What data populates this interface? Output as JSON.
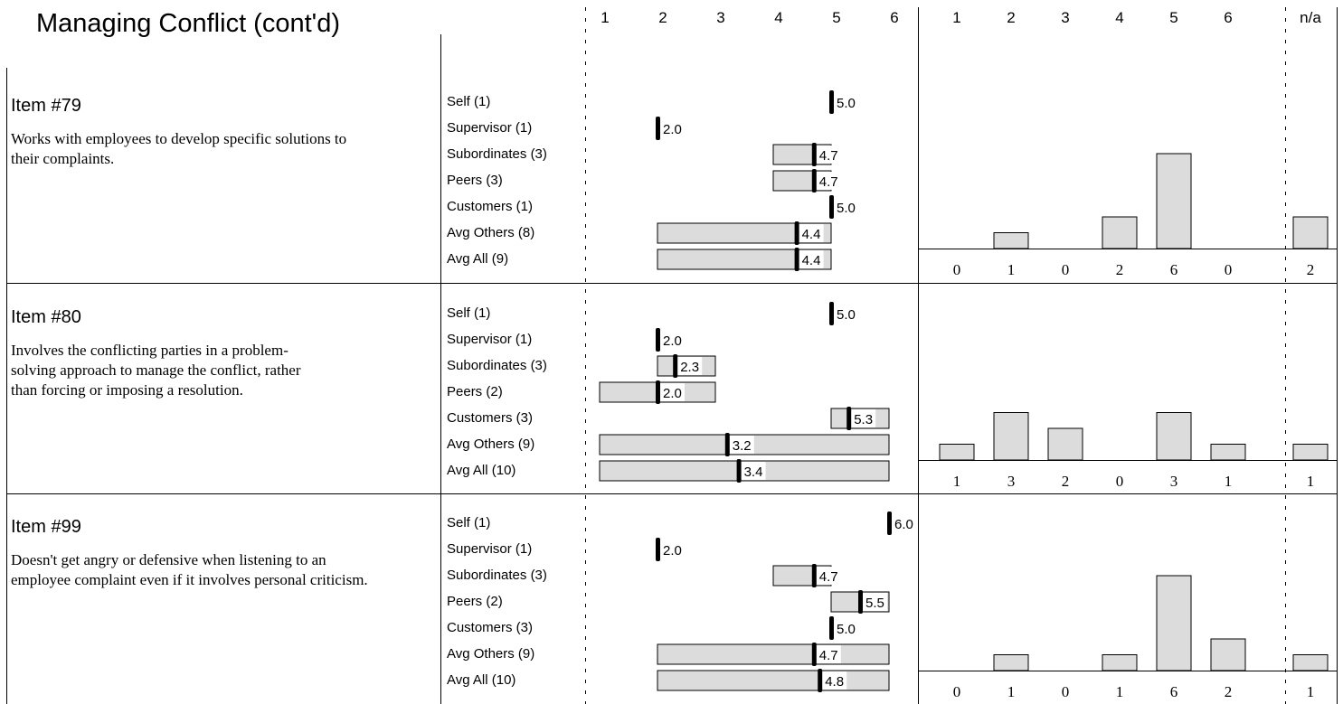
{
  "header": {
    "title": "Managing Conflict (cont'd)",
    "score_axis": [
      "1",
      "2",
      "3",
      "4",
      "5",
      "6"
    ],
    "dist_axis": [
      "1",
      "2",
      "3",
      "4",
      "5",
      "6"
    ],
    "na_label": "n/a"
  },
  "chart_data": {
    "type": "bar",
    "xlim": [
      1,
      6
    ],
    "items": [
      {
        "title": "Item #79",
        "description": "Works with employees to develop specific solutions to their complaints.",
        "groups": [
          {
            "label": "Self (1)",
            "mean": "5.0",
            "min": null,
            "max": null
          },
          {
            "label": "Supervisor (1)",
            "mean": "2.0",
            "min": null,
            "max": null
          },
          {
            "label": "Subordinates (3)",
            "mean": "4.7",
            "min": 4,
            "max": 5
          },
          {
            "label": "Peers (3)",
            "mean": "4.7",
            "min": 4,
            "max": 5
          },
          {
            "label": "Customers (1)",
            "mean": "5.0",
            "min": null,
            "max": null
          },
          {
            "label": "Avg Others (8)",
            "mean": "4.4",
            "min": 2,
            "max": 5
          },
          {
            "label": "Avg All (9)",
            "mean": "4.4",
            "min": 2,
            "max": 5
          }
        ],
        "distribution": [
          "0",
          "1",
          "0",
          "2",
          "6",
          "0"
        ],
        "na": "2"
      },
      {
        "title": "Item #80",
        "description": "Involves the conflicting parties in a problem-solving approach to manage the conflict, rather than forcing or imposing a resolution.",
        "groups": [
          {
            "label": "Self (1)",
            "mean": "5.0",
            "min": null,
            "max": null
          },
          {
            "label": "Supervisor (1)",
            "mean": "2.0",
            "min": null,
            "max": null
          },
          {
            "label": "Subordinates (3)",
            "mean": "2.3",
            "min": 2,
            "max": 3
          },
          {
            "label": "Peers (2)",
            "mean": "2.0",
            "min": 1,
            "max": 3
          },
          {
            "label": "Customers (3)",
            "mean": "5.3",
            "min": 5,
            "max": 6
          },
          {
            "label": "Avg Others (9)",
            "mean": "3.2",
            "min": 1,
            "max": 6
          },
          {
            "label": "Avg All (10)",
            "mean": "3.4",
            "min": 1,
            "max": 6
          }
        ],
        "distribution": [
          "1",
          "3",
          "2",
          "0",
          "3",
          "1"
        ],
        "na": "1"
      },
      {
        "title": "Item #99",
        "description": "Doesn't get angry or defensive when listening to an employee complaint even if it involves personal criticism.",
        "groups": [
          {
            "label": "Self (1)",
            "mean": "6.0",
            "min": null,
            "max": null
          },
          {
            "label": "Supervisor (1)",
            "mean": "2.0",
            "min": null,
            "max": null
          },
          {
            "label": "Subordinates (3)",
            "mean": "4.7",
            "min": 4,
            "max": 5
          },
          {
            "label": "Peers (2)",
            "mean": "5.5",
            "min": 5,
            "max": 6
          },
          {
            "label": "Customers (3)",
            "mean": "5.0",
            "min": null,
            "max": null
          },
          {
            "label": "Avg Others (9)",
            "mean": "4.7",
            "min": 2,
            "max": 6
          },
          {
            "label": "Avg All (10)",
            "mean": "4.8",
            "min": 2,
            "max": 6
          }
        ],
        "distribution": [
          "0",
          "1",
          "0",
          "1",
          "6",
          "2"
        ],
        "na": "1"
      }
    ]
  }
}
